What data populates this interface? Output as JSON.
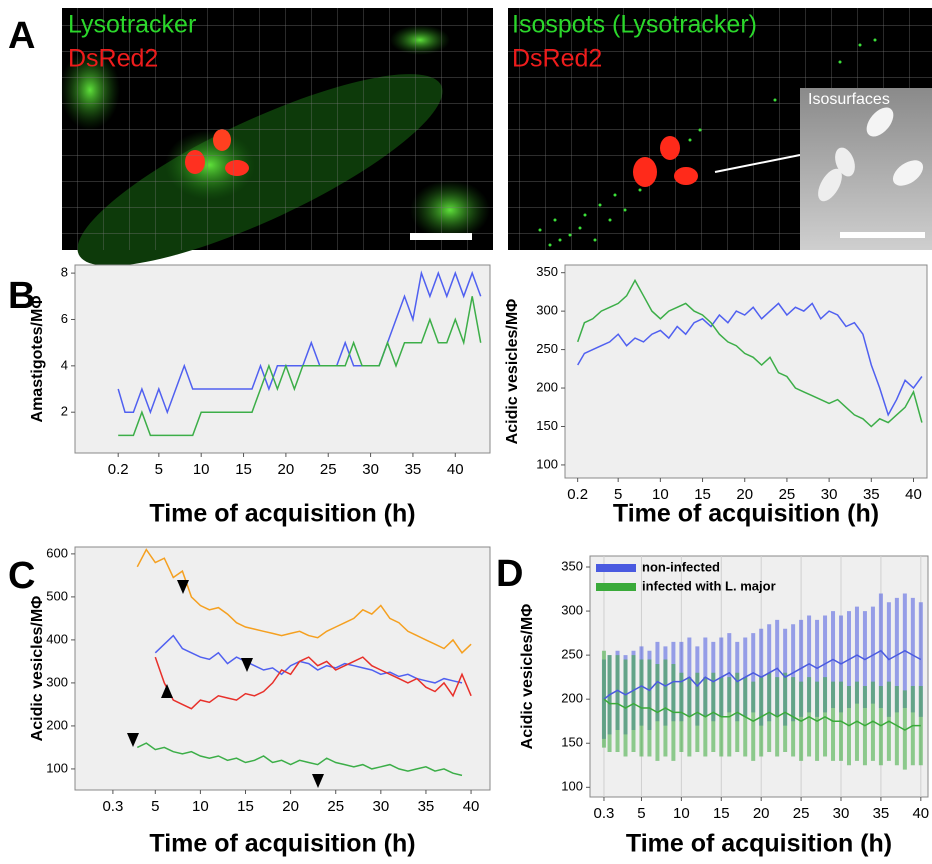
{
  "figure_labels": [
    "A",
    "B",
    "C",
    "D"
  ],
  "images": [
    {
      "labels": [
        "Lysotracker",
        "DsRed2"
      ]
    },
    {
      "labels": [
        "Isospots (Lysotracker)",
        "DsRed2"
      ],
      "inset_label": "Isosurfaces"
    }
  ],
  "chart_data": [
    {
      "type": "line",
      "x_label": "Time of acquisition (h)",
      "y_label": "Amastigotes/MΦ",
      "x": [
        0.2,
        1,
        2,
        3,
        4,
        5,
        6,
        7,
        8,
        9,
        10,
        11,
        12,
        13,
        14,
        15,
        16,
        17,
        18,
        19,
        20,
        21,
        22,
        23,
        24,
        25,
        26,
        27,
        28,
        29,
        30,
        31,
        32,
        33,
        34,
        35,
        36,
        37,
        38,
        39,
        40,
        41,
        42,
        43
      ],
      "series": [
        {
          "color": "#5060f0",
          "values": [
            3,
            2,
            2,
            3,
            2,
            3,
            2,
            3,
            4,
            3,
            3,
            3,
            3,
            3,
            3,
            3,
            3,
            4,
            3,
            4,
            4,
            4,
            4,
            5,
            4,
            4,
            4,
            5,
            4,
            4,
            4,
            4,
            5,
            6,
            7,
            6,
            8,
            7,
            8,
            7,
            8,
            7,
            8,
            7
          ]
        },
        {
          "color": "#3cae48",
          "values": [
            1,
            1,
            1,
            2,
            1,
            1,
            1,
            1,
            1,
            1,
            2,
            2,
            2,
            2,
            2,
            2,
            2,
            3,
            4,
            3,
            4,
            3,
            4,
            4,
            4,
            4,
            4,
            4,
            5,
            4,
            4,
            4,
            5,
            4,
            5,
            5,
            5,
            6,
            5,
            5,
            6,
            5,
            7,
            5
          ]
        }
      ],
      "xlim": [
        -4.9,
        44.1
      ],
      "ylim": [
        0.24,
        8.35
      ],
      "xticks": [
        0.2,
        5,
        10,
        15,
        20,
        25,
        30,
        35,
        40
      ],
      "yticks": [
        2,
        4,
        6,
        8
      ]
    },
    {
      "type": "line",
      "x_label": "Time of acquisition (h)",
      "y_label": "Acidic vesicles/MΦ",
      "x": [
        0.2,
        1,
        2,
        3,
        4,
        5,
        6,
        7,
        8,
        9,
        10,
        11,
        12,
        13,
        14,
        15,
        16,
        17,
        18,
        19,
        20,
        21,
        22,
        23,
        24,
        25,
        26,
        27,
        28,
        29,
        30,
        31,
        32,
        33,
        34,
        35,
        36,
        37,
        38,
        39,
        40,
        41
      ],
      "series": [
        {
          "color": "#5060f0",
          "values": [
            230,
            245,
            250,
            255,
            260,
            270,
            255,
            265,
            260,
            270,
            275,
            265,
            280,
            270,
            285,
            290,
            280,
            295,
            285,
            300,
            295,
            305,
            290,
            300,
            310,
            295,
            305,
            300,
            310,
            290,
            300,
            295,
            280,
            285,
            270,
            230,
            200,
            165,
            185,
            210,
            200,
            215
          ]
        },
        {
          "color": "#3cae48",
          "values": [
            260,
            285,
            290,
            300,
            305,
            310,
            320,
            340,
            320,
            300,
            290,
            300,
            305,
            310,
            300,
            295,
            285,
            270,
            260,
            255,
            245,
            240,
            230,
            240,
            220,
            215,
            200,
            195,
            190,
            185,
            180,
            185,
            175,
            165,
            160,
            150,
            160,
            155,
            165,
            175,
            195,
            155
          ]
        }
      ],
      "xlim": [
        -1.3,
        41.6
      ],
      "ylim": [
        83,
        360
      ],
      "xticks": [
        0.2,
        5,
        10,
        15,
        20,
        25,
        30,
        35,
        40
      ],
      "yticks": [
        100,
        150,
        200,
        250,
        300,
        350
      ]
    },
    {
      "type": "line",
      "x_label": "Time of acquisition (h)",
      "y_label": "Acidic vesicles/MΦ",
      "x": [
        3,
        4,
        5,
        6,
        7,
        8,
        9,
        10,
        11,
        12,
        13,
        14,
        15,
        16,
        17,
        18,
        19,
        20,
        21,
        22,
        23,
        24,
        25,
        26,
        27,
        28,
        29,
        30,
        31,
        32,
        33,
        34,
        35,
        36,
        37,
        38,
        39,
        40
      ],
      "series": [
        {
          "color": "#f5a020",
          "values": [
            570,
            610,
            580,
            590,
            545,
            560,
            500,
            480,
            470,
            475,
            460,
            440,
            430,
            425,
            420,
            415,
            410,
            415,
            420,
            410,
            405,
            420,
            430,
            440,
            450,
            470,
            460,
            480,
            450,
            440,
            420,
            410,
            400,
            390,
            380,
            400,
            370,
            390
          ]
        },
        {
          "color": "#5060f0",
          "values": [
            null,
            null,
            370,
            390,
            410,
            380,
            370,
            360,
            355,
            370,
            345,
            360,
            350,
            340,
            330,
            335,
            320,
            340,
            350,
            345,
            330,
            340,
            335,
            345,
            340,
            335,
            330,
            320,
            325,
            315,
            320,
            310,
            305,
            300,
            310,
            305,
            300,
            null
          ]
        },
        {
          "color": "#e8302a",
          "values": [
            null,
            null,
            360,
            300,
            260,
            250,
            240,
            260,
            255,
            270,
            265,
            260,
            275,
            270,
            280,
            300,
            330,
            320,
            350,
            360,
            340,
            350,
            330,
            340,
            350,
            360,
            340,
            330,
            320,
            310,
            300,
            310,
            290,
            280,
            300,
            270,
            320,
            270
          ]
        },
        {
          "color": "#3cae48",
          "values": [
            150,
            160,
            145,
            150,
            140,
            135,
            140,
            130,
            125,
            130,
            120,
            125,
            115,
            120,
            130,
            115,
            120,
            110,
            120,
            115,
            110,
            125,
            115,
            110,
            105,
            110,
            100,
            105,
            110,
            100,
            95,
            100,
            105,
            95,
            100,
            90,
            85,
            null
          ]
        }
      ],
      "xlim": [
        -3.9,
        42.1
      ],
      "ylim": [
        51,
        616
      ],
      "xticks": [
        0.3,
        5,
        10,
        15,
        20,
        25,
        30,
        35,
        40
      ],
      "yticks": [
        100,
        200,
        300,
        400,
        500,
        600
      ]
    },
    {
      "type": "line",
      "x_label": "Time of acquisition (h)",
      "y_label": "Acidic vesicles/MΦ",
      "legend": "upper left",
      "x": [
        0.3,
        1,
        2,
        3,
        4,
        5,
        6,
        7,
        8,
        9,
        10,
        11,
        12,
        13,
        14,
        15,
        16,
        17,
        18,
        19,
        20,
        21,
        22,
        23,
        24,
        25,
        26,
        27,
        28,
        29,
        30,
        31,
        32,
        33,
        34,
        35,
        36,
        37,
        38,
        39,
        40
      ],
      "series": [
        {
          "name": "non-infected",
          "color": "#4a5ae0",
          "values": [
            200,
            205,
            210,
            205,
            210,
            215,
            210,
            220,
            215,
            220,
            220,
            225,
            215,
            225,
            220,
            225,
            230,
            220,
            225,
            230,
            225,
            230,
            235,
            225,
            230,
            235,
            240,
            235,
            240,
            245,
            240,
            245,
            250,
            245,
            250,
            255,
            245,
            250,
            255,
            250,
            245
          ],
          "errors": [
            45,
            45,
            45,
            45,
            45,
            45,
            45,
            45,
            45,
            45,
            45,
            45,
            45,
            45,
            45,
            45,
            45,
            45,
            45,
            45,
            55,
            55,
            55,
            55,
            55,
            55,
            55,
            55,
            55,
            55,
            55,
            55,
            55,
            55,
            55,
            65,
            65,
            65,
            65,
            65,
            65
          ]
        },
        {
          "name": "infected with L. major",
          "color": "#3aaa3a",
          "values": [
            200,
            195,
            195,
            190,
            195,
            190,
            190,
            185,
            190,
            185,
            185,
            180,
            185,
            180,
            185,
            180,
            180,
            185,
            180,
            175,
            180,
            185,
            180,
            185,
            180,
            175,
            180,
            175,
            180,
            175,
            175,
            170,
            175,
            170,
            175,
            170,
            175,
            170,
            165,
            170,
            170
          ],
          "errors": [
            55,
            55,
            55,
            55,
            55,
            55,
            55,
            55,
            55,
            55,
            45,
            45,
            45,
            45,
            45,
            45,
            45,
            45,
            45,
            45,
            45,
            45,
            45,
            45,
            45,
            45,
            45,
            45,
            45,
            45,
            45,
            45,
            45,
            45,
            45,
            45,
            45,
            45,
            45,
            45,
            45
          ]
        }
      ],
      "xlim": [
        -1.45,
        40.9
      ],
      "ylim": [
        89,
        362.5
      ],
      "xticks": [
        0.3,
        5,
        10,
        15,
        20,
        25,
        30,
        35,
        40
      ],
      "yticks": [
        100,
        150,
        200,
        250,
        300,
        350
      ]
    }
  ]
}
